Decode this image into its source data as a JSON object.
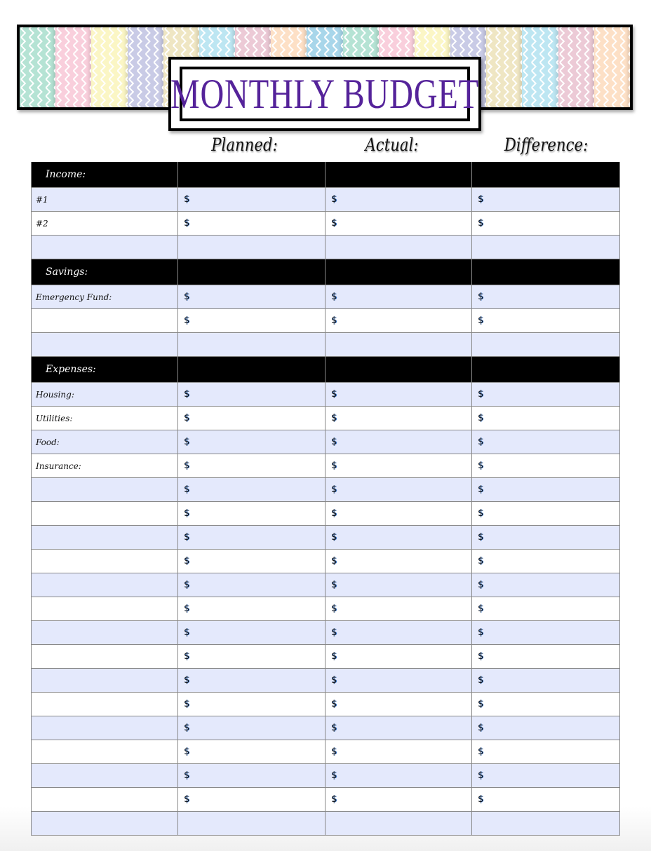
{
  "title": "MONTHLY BUDGET",
  "colors": {
    "title": "#55239a",
    "row_alt": "#e4e9fc",
    "header_row": "#000000"
  },
  "banner_stripes": [
    "#b5e3d4",
    "#f9cfdc",
    "#fbf6c5",
    "#c9cbe6",
    "#efe6c3",
    "#bde6f2",
    "#eccad6",
    "#fde0c6",
    "#a8d6ea",
    "#b5e3d4",
    "#f9cfdc",
    "#fbf6c5",
    "#c9cbe6",
    "#efe6c3",
    "#bde6f2",
    "#eccad6",
    "#fde0c6"
  ],
  "columns": {
    "planned": "Planned:",
    "actual": "Actual:",
    "difference": "Difference:"
  },
  "currency_symbol": "$",
  "sections": [
    {
      "label": "Income:",
      "rows": [
        {
          "label": "#1",
          "amount": true
        },
        {
          "label": "#2",
          "amount": true
        },
        {
          "label": "",
          "amount": false
        }
      ]
    },
    {
      "label": "Savings:",
      "rows": [
        {
          "label": "Emergency Fund:",
          "amount": true
        },
        {
          "label": "",
          "amount": true
        },
        {
          "label": "",
          "amount": false
        }
      ]
    },
    {
      "label": "Expenses:",
      "rows": [
        {
          "label": "Housing:",
          "amount": true
        },
        {
          "label": "Utilities:",
          "amount": true
        },
        {
          "label": "Food:",
          "amount": true
        },
        {
          "label": "Insurance:",
          "amount": true
        },
        {
          "label": "",
          "amount": true
        },
        {
          "label": "",
          "amount": true
        },
        {
          "label": "",
          "amount": true
        },
        {
          "label": "",
          "amount": true
        },
        {
          "label": "",
          "amount": true
        },
        {
          "label": "",
          "amount": true
        },
        {
          "label": "",
          "amount": true
        },
        {
          "label": "",
          "amount": true
        },
        {
          "label": "",
          "amount": true
        },
        {
          "label": "",
          "amount": true
        },
        {
          "label": "",
          "amount": true
        },
        {
          "label": "",
          "amount": true
        },
        {
          "label": "",
          "amount": true
        },
        {
          "label": "",
          "amount": true
        },
        {
          "label": "",
          "amount": false
        }
      ]
    }
  ]
}
